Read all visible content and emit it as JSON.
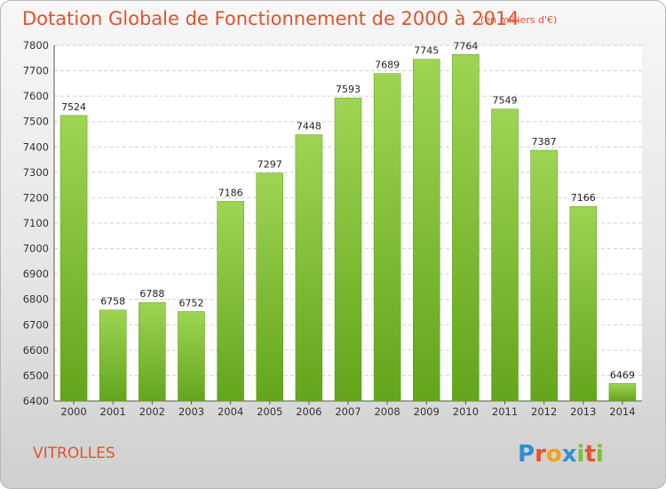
{
  "chart_data": {
    "type": "bar",
    "title": "Dotation Globale de Fonctionnement de 2000 à 2014",
    "subtitle": "(en milliers d'€)",
    "categories": [
      "2000",
      "2001",
      "2002",
      "2003",
      "2004",
      "2005",
      "2006",
      "2007",
      "2008",
      "2009",
      "2010",
      "2011",
      "2012",
      "2013",
      "2014"
    ],
    "values": [
      7524,
      6758,
      6788,
      6752,
      7186,
      7297,
      7448,
      7593,
      7689,
      7745,
      7764,
      7549,
      7387,
      7166,
      6469
    ],
    "ylim": [
      6400,
      7800
    ],
    "yticks": [
      6400,
      6500,
      6600,
      6700,
      6800,
      6900,
      7000,
      7100,
      7200,
      7300,
      7400,
      7500,
      7600,
      7700,
      7800
    ],
    "grid": true,
    "bar_color": "#7cc22e",
    "title_color": "#e0542a"
  },
  "commune": "VITROLLES",
  "logo": {
    "text": "Proxiti",
    "letters": [
      {
        "ch": "P",
        "color": "#2f8fd6"
      },
      {
        "ch": "r",
        "color": "#e8522a"
      },
      {
        "ch": "o",
        "color": "#f2a21a"
      },
      {
        "ch": "x",
        "color": "#2f8fd6"
      },
      {
        "ch": "i",
        "color": "#7cc22e"
      },
      {
        "ch": "t",
        "color": "#e8522a"
      },
      {
        "ch": "i",
        "color": "#7cc22e"
      }
    ]
  }
}
